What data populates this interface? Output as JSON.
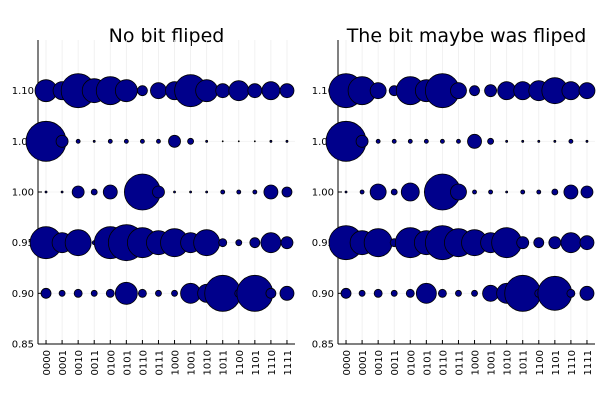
{
  "chart_data": [
    {
      "type": "bubble",
      "title": "No bit fliped",
      "color": "#00008b",
      "grid": true,
      "categories": [
        "0000",
        "0001",
        "0010",
        "0011",
        "0100",
        "0101",
        "0110",
        "0111",
        "1000",
        "1001",
        "1010",
        "1011",
        "1100",
        "1101",
        "1110",
        "1111"
      ],
      "ylim": [
        0.85,
        1.15
      ],
      "yticks": [
        {
          "value": 0.85,
          "label": "0.85"
        },
        {
          "value": 0.9,
          "label": "0.90"
        },
        {
          "value": 0.95,
          "label": "0.95"
        },
        {
          "value": 1.0,
          "label": "1.00"
        },
        {
          "value": 1.05,
          "label": "1.05"
        },
        {
          "value": 1.1,
          "label": "1.10"
        }
      ],
      "rows": [
        {
          "y": 1.1,
          "sizes": [
            11,
            9,
            17,
            12,
            14,
            11,
            5,
            8,
            9,
            16,
            11,
            7,
            10,
            7,
            9,
            7
          ]
        },
        {
          "y": 1.05,
          "sizes": [
            20,
            6,
            2,
            1,
            2,
            2,
            2,
            2,
            6,
            3,
            1,
            0.5,
            0.5,
            0.5,
            1,
            1
          ]
        },
        {
          "y": 1.0,
          "sizes": [
            1,
            1,
            6,
            3,
            7,
            1,
            18,
            6,
            1,
            1,
            1,
            2,
            2,
            2,
            7,
            5
          ]
        },
        {
          "y": 0.95,
          "sizes": [
            16,
            10,
            13,
            2,
            16,
            18,
            15,
            12,
            14,
            10,
            13,
            4,
            3,
            5,
            10,
            6
          ]
        },
        {
          "y": 0.9,
          "sizes": [
            5,
            3,
            4,
            3,
            4,
            11,
            4,
            3,
            3,
            10,
            9,
            18,
            4,
            18,
            5,
            7
          ]
        }
      ]
    },
    {
      "type": "bubble",
      "title": "The bit maybe was fliped",
      "color": "#00008b",
      "grid": true,
      "categories": [
        "0000",
        "0001",
        "0010",
        "0011",
        "0100",
        "0101",
        "0110",
        "0111",
        "1000",
        "1001",
        "1010",
        "1011",
        "1100",
        "1101",
        "1110",
        "1111"
      ],
      "ylim": [
        0.85,
        1.15
      ],
      "yticks": [
        {
          "value": 0.85,
          "label": "0.85"
        },
        {
          "value": 0.9,
          "label": "0.90"
        },
        {
          "value": 0.95,
          "label": "0.95"
        },
        {
          "value": 1.0,
          "label": "1.00"
        },
        {
          "value": 1.05,
          "label": "1.05"
        },
        {
          "value": 1.1,
          "label": "1.10"
        }
      ],
      "rows": [
        {
          "y": 1.1,
          "sizes": [
            17,
            14,
            8,
            5,
            14,
            11,
            17,
            8,
            5,
            6,
            9,
            9,
            10,
            13,
            9,
            8
          ]
        },
        {
          "y": 1.05,
          "sizes": [
            20,
            6,
            2,
            2,
            2,
            2,
            2,
            2,
            7,
            3,
            1,
            1,
            1,
            1,
            2,
            1
          ]
        },
        {
          "y": 1.0,
          "sizes": [
            1,
            2,
            8,
            3,
            9,
            2,
            18,
            8,
            2,
            2,
            1,
            2,
            2,
            3,
            7,
            6
          ]
        },
        {
          "y": 0.95,
          "sizes": [
            17,
            12,
            14,
            4,
            15,
            12,
            17,
            14,
            13,
            10,
            15,
            6,
            5,
            6,
            10,
            7
          ]
        },
        {
          "y": 0.9,
          "sizes": [
            5,
            3,
            4,
            3,
            4,
            10,
            4,
            3,
            3,
            8,
            10,
            18,
            4,
            17,
            4,
            7
          ]
        }
      ]
    }
  ]
}
